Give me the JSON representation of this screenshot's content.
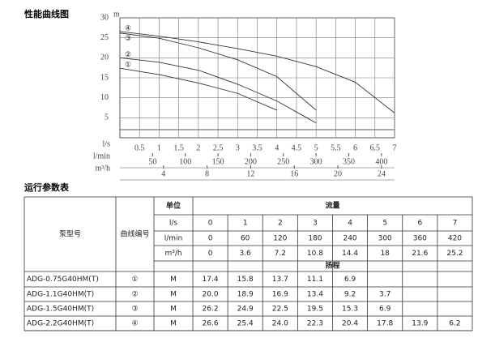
{
  "chart": {
    "title": "性能曲线图",
    "y_unit": "m",
    "ylim": [
      0,
      30
    ],
    "yticks": [
      5,
      10,
      15,
      20,
      25,
      30
    ],
    "xlim": [
      0,
      7
    ],
    "x_scales": [
      {
        "unit": "l/s",
        "ticks": [
          0.5,
          1,
          1.5,
          2,
          2.5,
          3,
          3.5,
          4,
          4.5,
          5,
          5.5,
          6,
          6.5,
          7
        ]
      },
      {
        "unit": "l/min",
        "ticks": [
          50,
          100,
          150,
          200,
          250,
          300,
          350,
          400
        ]
      },
      {
        "unit": "m³/h",
        "ticks": [
          4,
          8,
          12,
          16,
          20,
          24
        ]
      }
    ]
  },
  "table": {
    "title": "运行参数表",
    "headers": {
      "model": "泵型号",
      "curve": "曲线编号",
      "unit": "单位",
      "flow": "流量",
      "head": "扬程"
    },
    "flow_rows": [
      {
        "unit": "l/s",
        "values": [
          0,
          1,
          2,
          3,
          4,
          5,
          6,
          7
        ]
      },
      {
        "unit": "l/min",
        "values": [
          0,
          60,
          120,
          180,
          240,
          300,
          360,
          420
        ]
      },
      {
        "unit": "m³/h",
        "values": [
          0,
          3.6,
          7.2,
          10.8,
          14.4,
          18,
          21.6,
          25.2
        ]
      }
    ],
    "rows": [
      {
        "model": "ADG-0.75G40HM(T)",
        "curve": "①",
        "unit": "M",
        "values": [
          "17.4",
          "15.8",
          "13.7",
          "11.1",
          "6.9",
          null,
          null,
          null
        ]
      },
      {
        "model": "ADG-1.1G40HM(T)",
        "curve": "②",
        "unit": "M",
        "values": [
          "20.0",
          "18.9",
          "16.9",
          "13.4",
          "9.2",
          "3.7",
          null,
          null
        ]
      },
      {
        "model": "ADG-1.5G40HM(T)",
        "curve": "③",
        "unit": "M",
        "values": [
          "26.2",
          "24.9",
          "22.5",
          "19.5",
          "15.3",
          "6.9",
          null,
          null
        ]
      },
      {
        "model": "ADG-2.2G40HM(T)",
        "curve": "④",
        "unit": "M",
        "values": [
          "26.6",
          "25.4",
          "24.0",
          "22.3",
          "20.4",
          "17.8",
          "13.9",
          "6.2"
        ]
      }
    ]
  }
}
